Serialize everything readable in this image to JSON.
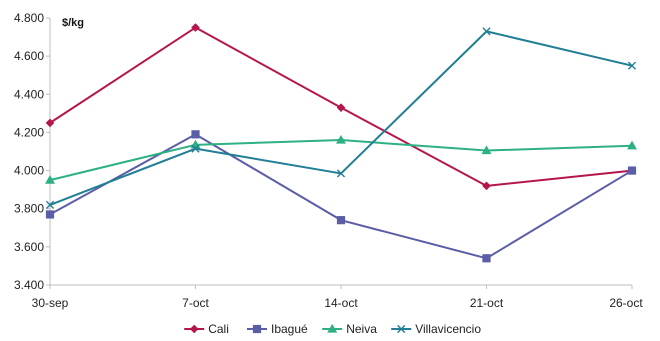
{
  "chart_data": {
    "type": "line",
    "title": "",
    "xlabel": "",
    "ylabel": "$/kg",
    "categories": [
      "30-sep",
      "7-oct",
      "14-oct",
      "21-oct",
      "26-oct"
    ],
    "y_ticks": [
      "3.400",
      "3.600",
      "3.800",
      "4.000",
      "4.200",
      "4.400",
      "4.600",
      "4.800"
    ],
    "ylim": [
      3400,
      4800
    ],
    "grid": false,
    "legend_position": "bottom",
    "series": [
      {
        "name": "Cali",
        "color": "#B5164D",
        "marker": "diamond",
        "values": [
          4250,
          4750,
          4330,
          3920,
          4000
        ]
      },
      {
        "name": "Ibagué",
        "color": "#5B5EA6",
        "marker": "square",
        "values": [
          3770,
          4190,
          3740,
          3540,
          4000
        ]
      },
      {
        "name": "Neiva",
        "color": "#2DB082",
        "marker": "triangle",
        "values": [
          3950,
          4135,
          4160,
          4105,
          4130
        ]
      },
      {
        "name": "Villavicencio",
        "color": "#207E95",
        "marker": "x",
        "values": [
          3820,
          4115,
          3985,
          4730,
          4550
        ]
      }
    ]
  }
}
